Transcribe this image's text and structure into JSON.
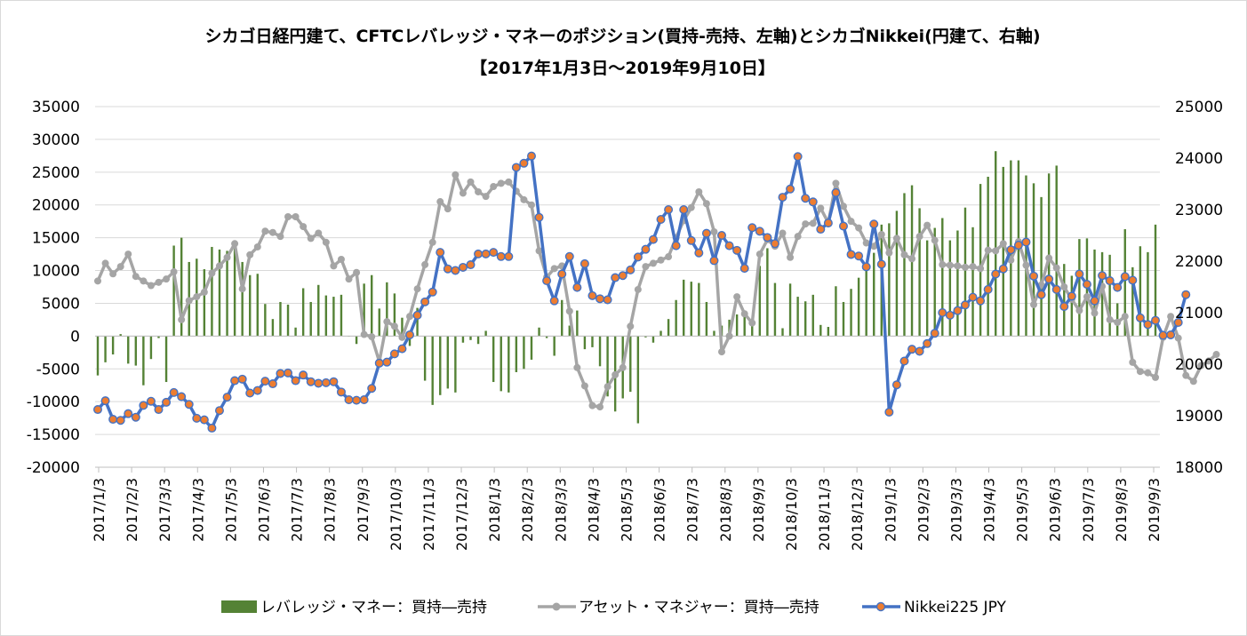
{
  "chart_data": {
    "type": "bar+line",
    "title": "シカゴ日経円建て、CFTCレバレッジ・マネーのポジション(買持-売持、左軸)とシカゴNikkei(円建て、右軸)",
    "subtitle": "【2017年1月3日～2019年9月10日】",
    "left_axis": {
      "ylim": [
        -20000,
        35000
      ],
      "ticks": [
        35000,
        30000,
        25000,
        20000,
        15000,
        10000,
        5000,
        0,
        -5000,
        -10000,
        -15000,
        -20000
      ]
    },
    "right_axis": {
      "ylim": [
        18000,
        25000
      ],
      "ticks": [
        25000,
        24000,
        23000,
        22000,
        21000,
        20000,
        19000,
        18000
      ]
    },
    "x_ticks": [
      "2017/1/3",
      "2017/2/3",
      "2017/3/3",
      "2017/4/3",
      "2017/5/3",
      "2017/6/3",
      "2017/7/3",
      "2017/8/3",
      "2017/9/3",
      "2017/10/3",
      "2017/11/3",
      "2017/12/3",
      "2018/1/3",
      "2018/2/3",
      "2018/3/3",
      "2018/4/3",
      "2018/5/3",
      "2018/6/3",
      "2018/7/3",
      "2018/8/3",
      "2018/9/3",
      "2018/10/3",
      "2018/11/3",
      "2018/12/3",
      "2019/1/3",
      "2019/2/3",
      "2019/3/3",
      "2019/4/3",
      "2019/5/3",
      "2019/6/3",
      "2019/7/3",
      "2019/8/3",
      "2019/9/3"
    ],
    "colors": {
      "leveraged": "#548235",
      "asset": "#a5a5a5",
      "nikkei_line": "#4472c4",
      "nikkei_marker": "#ed7d31"
    },
    "series": [
      {
        "name": "レバレッジ・マネー：買持―売持",
        "axis": "left",
        "type": "bar",
        "values": [
          -6000,
          -4000,
          -2800,
          300,
          -4200,
          -4500,
          -7500,
          -3500,
          -300,
          -7000,
          13800,
          15000,
          11300,
          11800,
          10200,
          13600,
          13200,
          13000,
          13800,
          11300,
          9300,
          9500,
          4900,
          2600,
          5200,
          4800,
          1300,
          7300,
          5200,
          7800,
          6200,
          6000,
          6300,
          0,
          -1200,
          8000,
          9300,
          4200,
          8200,
          6500,
          2800,
          -1500,
          4300,
          -6800,
          -10500,
          -9000,
          -8000,
          -8600,
          -1000,
          -600,
          -1200,
          800,
          -7000,
          -8400,
          -8600,
          -5500,
          -5000,
          -3600,
          1300,
          -300,
          -3000,
          5500,
          1600,
          3900,
          -2000,
          -1700,
          -4600,
          -9200,
          -11500,
          -9500,
          -8500,
          -13300,
          -200,
          -1000,
          800,
          2600,
          5500,
          8600,
          8300,
          8100,
          5200,
          800,
          1600,
          2500,
          3300,
          3200,
          1800,
          10700,
          13400,
          8100,
          1200,
          8000,
          6000,
          5300,
          6300,
          1700,
          1400,
          7600,
          5200,
          7200,
          8900,
          10700,
          12700,
          17000,
          17200,
          19100,
          21800,
          23000,
          19500,
          14600,
          16500,
          18000,
          14600,
          16100,
          19600,
          16600,
          23200,
          24300,
          28200,
          25800,
          26800,
          26800,
          24500,
          23300,
          21200,
          24800,
          26000,
          11000,
          9200,
          14800,
          14900,
          13200,
          12800,
          12400,
          5000,
          16300,
          10500,
          13700,
          12800,
          17000
        ]
      },
      {
        "name": "アセット・マネジャー：買持―売持",
        "axis": "left",
        "type": "line",
        "values": [
          8400,
          11100,
          9500,
          10600,
          12500,
          9100,
          8400,
          7700,
          8200,
          8700,
          9800,
          2500,
          5400,
          6000,
          6700,
          9600,
          10700,
          12000,
          14100,
          7200,
          12400,
          13600,
          16000,
          15800,
          15200,
          18200,
          18200,
          16700,
          14900,
          15700,
          14300,
          10700,
          11700,
          8700,
          9700,
          250,
          -100,
          -3900,
          2200,
          1500,
          -200,
          3000,
          7200,
          10900,
          14300,
          20500,
          19400,
          24600,
          21800,
          23500,
          22000,
          21300,
          22800,
          23300,
          23500,
          22100,
          20800,
          20000,
          13000,
          9000,
          10300,
          10700,
          3800,
          -4800,
          -7600,
          -10600,
          -10800,
          -7700,
          -5900,
          -4800,
          1500,
          7100,
          10600,
          11100,
          11600,
          12100,
          15000,
          17600,
          19600,
          22000,
          20200,
          15900,
          -2400,
          0,
          6000,
          3400,
          2000,
          12500,
          14700,
          13700,
          15700,
          12000,
          15200,
          17100,
          17200,
          19500,
          17300,
          23300,
          19800,
          17500,
          16500,
          14200,
          13700,
          15500,
          12700,
          14900,
          12400,
          11800,
          15200,
          16900,
          14600,
          10900,
          10800,
          10700,
          10500,
          10600,
          10300,
          13100,
          13000,
          14100,
          11600,
          14400,
          10800,
          4800,
          7800,
          11900,
          10400,
          7500,
          5600,
          3900,
          6000,
          3500,
          7600,
          2500,
          2100,
          3000,
          -4000,
          -5400,
          -5600,
          -6300,
          -200,
          3000,
          -300,
          -6000,
          -6900,
          -4500,
          -3800,
          -2800
        ]
      },
      {
        "name": "Nikkei225 JPY",
        "axis": "right",
        "type": "line",
        "values": [
          19120,
          19290,
          18930,
          18910,
          19040,
          18970,
          19200,
          19280,
          19120,
          19260,
          19450,
          19370,
          19220,
          18950,
          18920,
          18760,
          19100,
          19360,
          19680,
          19710,
          19440,
          19490,
          19670,
          19620,
          19820,
          19830,
          19680,
          19790,
          19660,
          19630,
          19640,
          19660,
          19460,
          19310,
          19300,
          19310,
          19530,
          20020,
          20040,
          20200,
          20300,
          20570,
          20950,
          21210,
          21400,
          22170,
          21850,
          21820,
          21880,
          21930,
          22140,
          22140,
          22170,
          22090,
          22090,
          23820,
          23900,
          24040,
          22850,
          21620,
          21230,
          21750,
          22090,
          21490,
          21950,
          21330,
          21270,
          21250,
          21680,
          21720,
          21830,
          22080,
          22230,
          22420,
          22810,
          23000,
          22300,
          23000,
          22400,
          22160,
          22540,
          22010,
          22500,
          22300,
          22210,
          21860,
          22650,
          22580,
          22460,
          22340,
          23240,
          23400,
          24030,
          23220,
          23150,
          22620,
          22740,
          23330,
          22680,
          22130,
          22100,
          21890,
          22720,
          21940,
          19070,
          19600,
          20060,
          20290,
          20250,
          20400,
          20600,
          21000,
          20950,
          21040,
          21150,
          21300,
          21230,
          21450,
          21750,
          21850,
          22220,
          22310,
          22370,
          21710,
          21350,
          21650,
          21450,
          21120,
          21320,
          21750,
          21550,
          21230,
          21720,
          21620,
          21490,
          21700,
          21630,
          20900,
          20770,
          20850,
          20560,
          20570,
          20810,
          21350
        ]
      }
    ]
  }
}
